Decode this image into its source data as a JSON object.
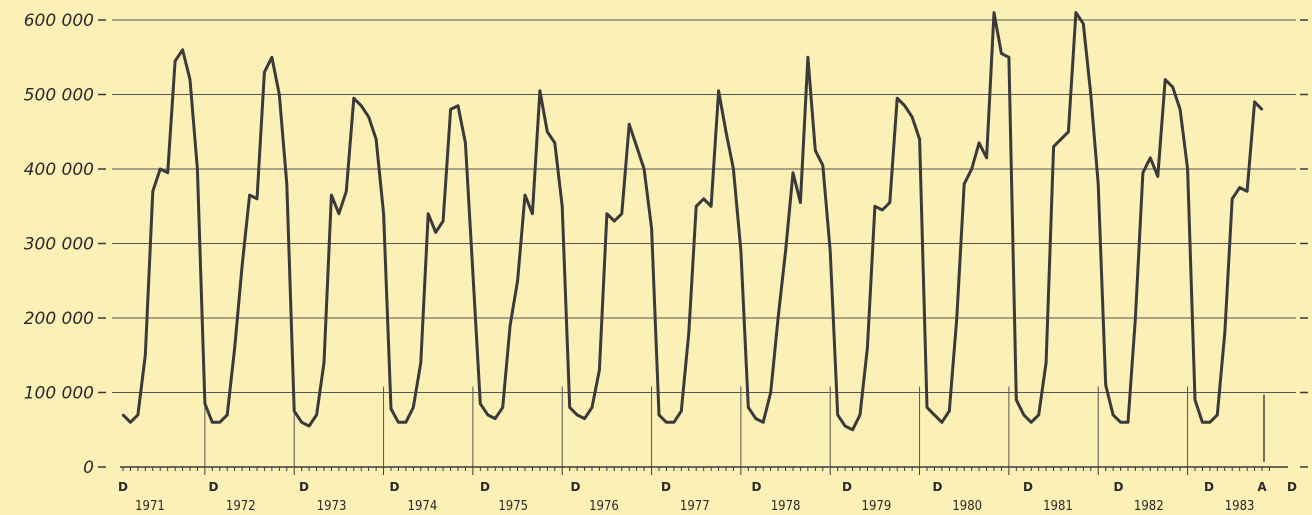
{
  "colors": {
    "background": "#fbf0b5",
    "ink": "#3a3a3a",
    "grid": "#555555"
  },
  "chart_data": {
    "type": "line",
    "title": "",
    "xlabel": "",
    "ylabel": "",
    "ylim": [
      0,
      600000
    ],
    "grid": true,
    "yticks": [
      0,
      100000,
      200000,
      300000,
      400000,
      500000,
      600000
    ],
    "ytick_labels": [
      "0",
      "100 000",
      "200 000",
      "300 000",
      "400 000",
      "500 000",
      "600 000"
    ],
    "month_labels": [
      "D",
      "D",
      "D",
      "D",
      "D",
      "D",
      "D",
      "D",
      "D",
      "D",
      "D",
      "D",
      "D",
      "A",
      "D"
    ],
    "year_labels": [
      "1971",
      "1972",
      "1973",
      "1974",
      "1975",
      "1976",
      "1977",
      "1978",
      "1979",
      "1980",
      "1981",
      "1982",
      "1983"
    ],
    "series": [
      {
        "values": [
          70000,
          60000,
          70000,
          150000,
          370000,
          400000,
          395000,
          545000,
          560000,
          520000,
          400000,
          85000,
          60000,
          60000,
          70000,
          160000,
          270000,
          365000,
          360000,
          530000,
          550000,
          500000,
          380000,
          75000,
          60000,
          55000,
          70000,
          140000,
          365000,
          340000,
          370000,
          495000,
          485000,
          470000,
          440000,
          340000,
          78000,
          60000,
          60000,
          80000,
          140000,
          340000,
          315000,
          330000,
          480000,
          485000,
          435000,
          260000,
          85000,
          70000,
          65000,
          80000,
          190000,
          250000,
          365000,
          340000,
          505000,
          450000,
          435000,
          350000,
          80000,
          70000,
          65000,
          80000,
          130000,
          340000,
          330000,
          340000,
          460000,
          430000,
          400000,
          320000,
          70000,
          60000,
          60000,
          75000,
          180000,
          350000,
          360000,
          350000,
          505000,
          450000,
          400000,
          290000,
          80000,
          65000,
          60000,
          100000,
          200000,
          290000,
          395000,
          355000,
          550000,
          425000,
          405000,
          290000,
          70000,
          55000,
          50000,
          70000,
          160000,
          350000,
          345000,
          355000,
          495000,
          485000,
          470000,
          440000,
          80000,
          70000,
          60000,
          75000,
          200000,
          380000,
          400000,
          435000,
          415000,
          610000,
          555000,
          550000,
          90000,
          70000,
          60000,
          70000,
          140000,
          430000,
          440000,
          450000,
          610000,
          595000,
          500000,
          380000,
          110000,
          70000,
          60000,
          60000,
          200000,
          395000,
          415000,
          390000,
          520000,
          510000,
          480000,
          400000,
          90000,
          60000,
          60000,
          70000,
          180000,
          360000,
          375000,
          370000,
          490000,
          480000
        ]
      }
    ]
  }
}
